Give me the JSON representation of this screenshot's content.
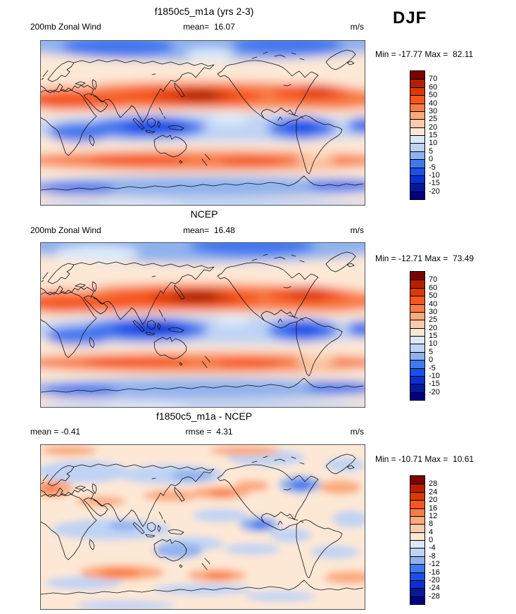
{
  "season_label": "DJF",
  "colorbar": {
    "palette_top_to_bottom": [
      "#7E0000",
      "#B22000",
      "#DC3A00",
      "#F5571E",
      "#F87D45",
      "#FBA97D",
      "#FCCBAA",
      "#FDE8D5",
      "#DCE9FA",
      "#BFD3F4",
      "#8FB2EE",
      "#4377EE",
      "#1C4FE8",
      "#0B2FD0",
      "#04199E",
      "#020080"
    ]
  },
  "panels": [
    {
      "title": "f1850c5_m1a (yrs 2-3)",
      "left_label": "200mb Zonal Wind",
      "center_stat": "mean=  16.07",
      "units": "m/s",
      "minmax": "Min = -17.77 Max =  82.11",
      "ticks": [
        "70",
        "60",
        "50",
        "40",
        "30",
        "25",
        "20",
        "15",
        "10",
        "5",
        "0",
        "-5",
        "-10",
        "-15",
        "-20"
      ]
    },
    {
      "title": "NCEP",
      "left_label": "200mb Zonal Wind",
      "center_stat": "mean=  16.48",
      "units": "m/s",
      "minmax": "Min = -12.71 Max =  73.49",
      "ticks": [
        "70",
        "60",
        "50",
        "40",
        "30",
        "25",
        "20",
        "15",
        "10",
        "5",
        "0",
        "-5",
        "-10",
        "-15",
        "-20"
      ]
    },
    {
      "title": "f1850c5_m1a - NCEP",
      "left_label": "mean = -0.41",
      "center_stat": "rmse =  4.31",
      "units": "m/s",
      "minmax": "Min = -10.71 Max =  10.61",
      "ticks": [
        "28",
        "24",
        "20",
        "16",
        "12",
        "8",
        "4",
        "0",
        "-4",
        "-8",
        "-12",
        "-16",
        "-20",
        "-24",
        "-28"
      ]
    }
  ],
  "chart_data": [
    {
      "type": "heatmap",
      "subtype": "filled_contour_map",
      "panel": "top",
      "title": "f1850c5_m1a (yrs 2-3)",
      "variable": "200mb Zonal Wind",
      "season": "DJF",
      "units": "m/s",
      "projection": "global equirectangular, longitude 0-360, latitude 90N-90S",
      "stats": {
        "mean": 16.07,
        "min": -17.77,
        "max": 82.11
      },
      "contour_levels": [
        -20,
        -15,
        -10,
        -5,
        0,
        5,
        10,
        15,
        20,
        25,
        30,
        40,
        50,
        60,
        70
      ],
      "colormap_low_to_high": [
        "#020080",
        "#04199E",
        "#0B2FD0",
        "#1C4FE8",
        "#4377EE",
        "#8FB2EE",
        "#BFD3F4",
        "#DCE9FA",
        "#FDE8D5",
        "#FCCBAA",
        "#FBA97D",
        "#F87D45",
        "#F5571E",
        "#DC3A00",
        "#B22000",
        "#7E0000"
      ],
      "legend_position": "right",
      "features": [
        "NH subtropical westerly jet band ~20-40N with maximum >70 m/s over East Asia / NW Pacific",
        "secondary westerly maximum 40-60 m/s over eastern North America / Atlantic",
        "tropical easterlies (below 0) over Indian Ocean-Indonesia and eastern Pacific / South America",
        "SH midlatitude westerly band ~25-40 m/s near 40-55S",
        "weak or easterly flow near both poles"
      ]
    },
    {
      "type": "heatmap",
      "subtype": "filled_contour_map",
      "panel": "middle",
      "title": "NCEP",
      "variable": "200mb Zonal Wind",
      "season": "DJF",
      "units": "m/s",
      "projection": "global equirectangular, longitude 0-360, latitude 90N-90S",
      "stats": {
        "mean": 16.48,
        "min": -12.71,
        "max": 73.49
      },
      "contour_levels": [
        -20,
        -15,
        -10,
        -5,
        0,
        5,
        10,
        15,
        20,
        25,
        30,
        40,
        50,
        60,
        70
      ],
      "colormap_low_to_high": [
        "#020080",
        "#04199E",
        "#0B2FD0",
        "#1C4FE8",
        "#4377EE",
        "#8FB2EE",
        "#BFD3F4",
        "#DCE9FA",
        "#FDE8D5",
        "#FCCBAA",
        "#FBA97D",
        "#F87D45",
        "#F5571E",
        "#DC3A00",
        "#B22000",
        "#7E0000"
      ],
      "legend_position": "right",
      "features": [
        "stronger, more concentrated East Asian jet core (>70 m/s) than model panel",
        "stronger tropical easterly core over Indian Ocean / Maritime Continent",
        "westerly maximum over eastern North America / Atlantic",
        "SH midlatitude westerly band near 40-55S"
      ]
    },
    {
      "type": "heatmap",
      "subtype": "filled_contour_difference_map",
      "panel": "bottom",
      "title": "f1850c5_m1a - NCEP",
      "variable": "200mb Zonal Wind difference (model minus reanalysis)",
      "season": "DJF",
      "units": "m/s",
      "projection": "global equirectangular, longitude 0-360, latitude 90N-90S",
      "stats": {
        "mean": -0.41,
        "rmse": 4.31,
        "min": -10.71,
        "max": 10.61
      },
      "contour_levels": [
        -28,
        -24,
        -20,
        -16,
        -12,
        -8,
        -4,
        0,
        4,
        8,
        12,
        16,
        20,
        24,
        28
      ],
      "colormap_low_to_high": [
        "#020080",
        "#04199E",
        "#0B2FD0",
        "#1C4FE8",
        "#4377EE",
        "#8FB2EE",
        "#BFD3F4",
        "#DCE9FA",
        "#FDE8D5",
        "#FCCBAA",
        "#FBA97D",
        "#F87D45",
        "#F5571E",
        "#DC3A00",
        "#B22000",
        "#7E0000"
      ],
      "legend_position": "right",
      "features": [
        "differences mostly within +/-8 m/s (pale shading dominates)",
        "negative anomalies over eastern Canada and equatorial eastern Pacific",
        "weak negative band across tropical Indian Ocean and Siberia",
        "positive anomalies over Europe, central North Pacific and SH midlatitudes ~50-60S"
      ]
    }
  ]
}
